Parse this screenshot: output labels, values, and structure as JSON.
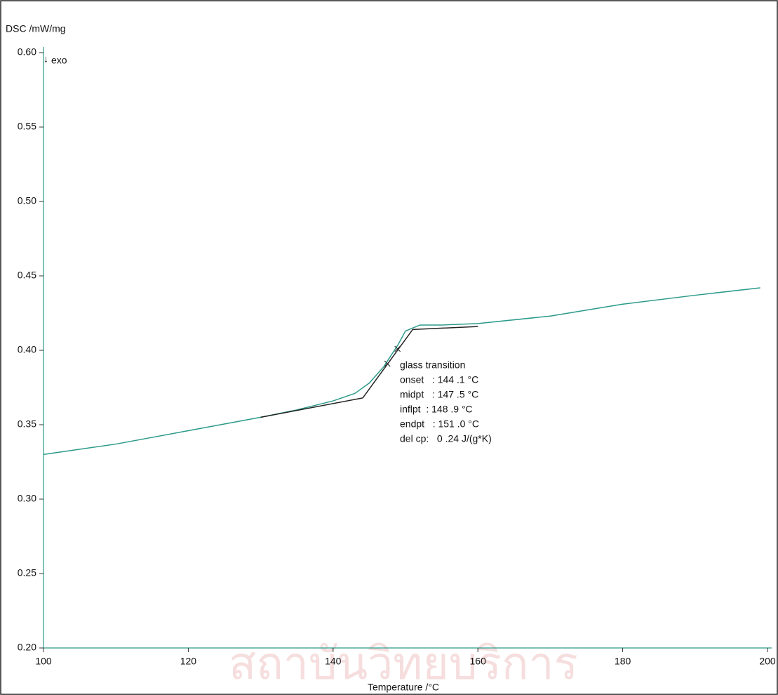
{
  "chart_data": {
    "type": "line",
    "y_label": "DSC /mW/mg",
    "x_label": "Temperature /°C",
    "exo_label": "exo",
    "watermark": "สถาบันวิทยบริการ",
    "annotations": [
      "glass transition",
      "onset   : 144 .1 °C",
      "midpt   : 147 .5 °C",
      "inflpt  : 148 .9 °C",
      "endpt   : 151 .0 °C",
      "del cp:   0 .24 J/(g*K)"
    ],
    "xlim": [
      100,
      200
    ],
    "xticks": [
      100,
      120,
      140,
      160,
      180,
      200
    ],
    "ylim": [
      0.2,
      0.6
    ],
    "yticks": [
      {
        "value": 0.2,
        "label": "0.20"
      },
      0.25,
      {
        "value": 0.3,
        "label": "0.30"
      },
      0.35,
      {
        "value": 0.4,
        "label": "0.40"
      },
      0.45,
      {
        "value": 0.5,
        "label": "0.50"
      },
      0.55,
      {
        "value": 0.6,
        "label": "0.60"
      }
    ],
    "axis_color": "#2a9a8a",
    "series": [
      {
        "color": "#2a9a8a",
        "x": [
          100,
          110,
          120,
          130,
          135,
          140,
          143,
          145,
          147,
          149,
          150,
          152,
          155,
          160,
          170,
          180,
          190,
          199
        ],
        "values": [
          0.33,
          0.337,
          0.346,
          0.355,
          0.36,
          0.366,
          0.371,
          0.378,
          0.389,
          0.404,
          0.413,
          0.417,
          0.417,
          0.418,
          0.423,
          0.431,
          0.437,
          0.442
        ]
      },
      {
        "color": "#222222",
        "x": [
          130,
          144.1,
          151,
          160
        ],
        "values": [
          0.355,
          0.368,
          0.414,
          0.416
        ]
      },
      {
        "color": "#333333",
        "marker": "x",
        "x": [
          147.5,
          148.9
        ],
        "values": [
          0.391,
          0.401
        ]
      }
    ]
  }
}
